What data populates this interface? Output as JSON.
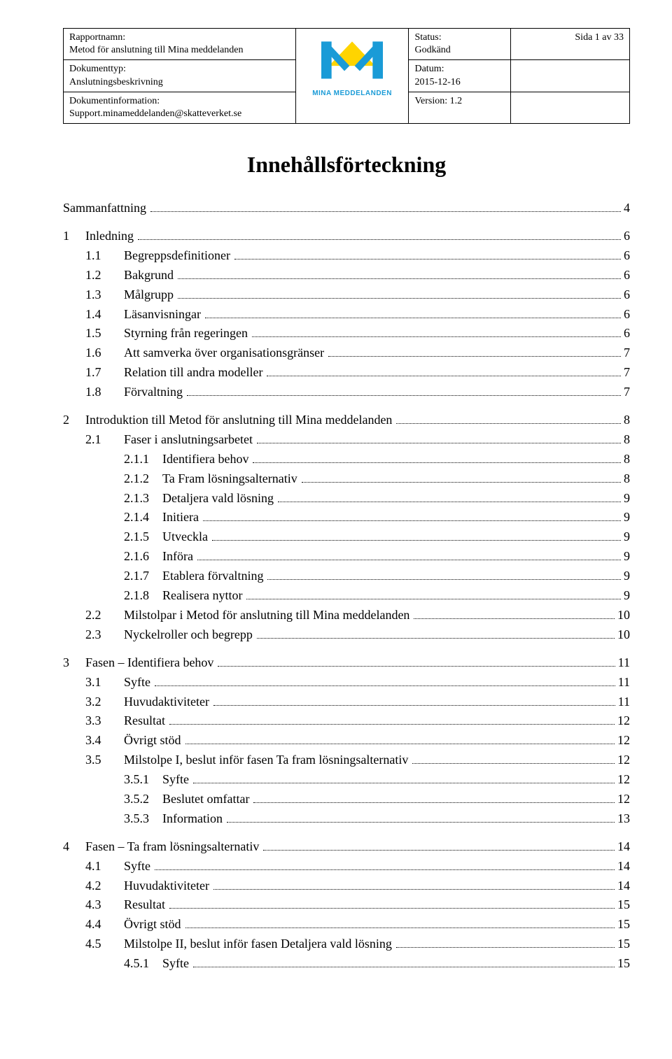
{
  "header": {
    "rapportnamn_label": "Rapportnamn:",
    "rapportnamn_value": "Metod för anslutning till Mina meddelanden",
    "status_label": "Status:",
    "status_value": "Godkänd",
    "sida_label": "Sida 1 av 33",
    "dokumenttyp_label": "Dokumenttyp:",
    "dokumenttyp_value": "Anslutningsbeskrivning",
    "datum_label": "Datum:",
    "datum_value": "2015-12-16",
    "dokumentinfo_label": "Dokumentinformation:",
    "dokumentinfo_value": "Support.minameddelanden@skatteverket.se",
    "version_label": "Version: 1.2",
    "logo_text": "MINA MEDDELANDEN",
    "logo_colors": {
      "m": "#1a9bd7",
      "triangle": "#ffd400"
    }
  },
  "toc_title": "Innehållsförteckning",
  "toc": [
    {
      "level": 0,
      "num": "",
      "text": "Sammanfattning",
      "page": "4"
    },
    {
      "gap": true
    },
    {
      "level": 1,
      "num": "1",
      "text": "Inledning",
      "page": "6"
    },
    {
      "level": 2,
      "num": "1.1",
      "text": "Begreppsdefinitioner",
      "page": "6"
    },
    {
      "level": 2,
      "num": "1.2",
      "text": "Bakgrund",
      "page": "6"
    },
    {
      "level": 2,
      "num": "1.3",
      "text": "Målgrupp",
      "page": "6"
    },
    {
      "level": 2,
      "num": "1.4",
      "text": "Läsanvisningar",
      "page": "6"
    },
    {
      "level": 2,
      "num": "1.5",
      "text": "Styrning från regeringen",
      "page": "6"
    },
    {
      "level": 2,
      "num": "1.6",
      "text": "Att samverka över organisationsgränser",
      "page": "7"
    },
    {
      "level": 2,
      "num": "1.7",
      "text": "Relation till andra modeller",
      "page": "7"
    },
    {
      "level": 2,
      "num": "1.8",
      "text": "Förvaltning",
      "page": "7"
    },
    {
      "gap": true
    },
    {
      "level": 1,
      "num": "2",
      "text": "Introduktion till Metod för anslutning till Mina meddelanden",
      "page": "8"
    },
    {
      "level": 2,
      "num": "2.1",
      "text": "Faser i anslutningsarbetet",
      "page": "8"
    },
    {
      "level": 3,
      "num": "2.1.1",
      "text": "Identifiera behov",
      "page": "8"
    },
    {
      "level": 3,
      "num": "2.1.2",
      "text": "Ta Fram lösningsalternativ",
      "page": "8"
    },
    {
      "level": 3,
      "num": "2.1.3",
      "text": "Detaljera vald lösning",
      "page": "9"
    },
    {
      "level": 3,
      "num": "2.1.4",
      "text": "Initiera",
      "page": "9"
    },
    {
      "level": 3,
      "num": "2.1.5",
      "text": "Utveckla",
      "page": "9"
    },
    {
      "level": 3,
      "num": "2.1.6",
      "text": "Införa",
      "page": "9"
    },
    {
      "level": 3,
      "num": "2.1.7",
      "text": "Etablera förvaltning",
      "page": "9"
    },
    {
      "level": 3,
      "num": "2.1.8",
      "text": "Realisera nyttor",
      "page": "9"
    },
    {
      "level": 2,
      "num": "2.2",
      "text": "Milstolpar i Metod för anslutning till Mina meddelanden",
      "page": "10"
    },
    {
      "level": 2,
      "num": "2.3",
      "text": "Nyckelroller och begrepp",
      "page": "10"
    },
    {
      "gap": true
    },
    {
      "level": 1,
      "num": "3",
      "text": "Fasen – Identifiera behov",
      "page": "11"
    },
    {
      "level": 2,
      "num": "3.1",
      "text": "Syfte",
      "page": "11"
    },
    {
      "level": 2,
      "num": "3.2",
      "text": "Huvudaktiviteter",
      "page": "11"
    },
    {
      "level": 2,
      "num": "3.3",
      "text": "Resultat",
      "page": "12"
    },
    {
      "level": 2,
      "num": "3.4",
      "text": "Övrigt stöd",
      "page": "12"
    },
    {
      "level": 2,
      "num": "3.5",
      "text": "Milstolpe I, beslut inför fasen Ta fram lösningsalternativ",
      "page": "12"
    },
    {
      "level": 3,
      "num": "3.5.1",
      "text": "Syfte",
      "page": "12"
    },
    {
      "level": 3,
      "num": "3.5.2",
      "text": "Beslutet omfattar",
      "page": "12"
    },
    {
      "level": 3,
      "num": "3.5.3",
      "text": "Information",
      "page": "13"
    },
    {
      "gap": true
    },
    {
      "level": 1,
      "num": "4",
      "text": "Fasen – Ta fram lösningsalternativ",
      "page": "14"
    },
    {
      "level": 2,
      "num": "4.1",
      "text": "Syfte",
      "page": "14"
    },
    {
      "level": 2,
      "num": "4.2",
      "text": "Huvudaktiviteter",
      "page": "14"
    },
    {
      "level": 2,
      "num": "4.3",
      "text": "Resultat",
      "page": "15"
    },
    {
      "level": 2,
      "num": "4.4",
      "text": "Övrigt stöd",
      "page": "15"
    },
    {
      "level": 2,
      "num": "4.5",
      "text": "Milstolpe II, beslut inför fasen Detaljera vald lösning",
      "page": "15"
    },
    {
      "level": 3,
      "num": "4.5.1",
      "text": "Syfte",
      "page": "15"
    }
  ]
}
